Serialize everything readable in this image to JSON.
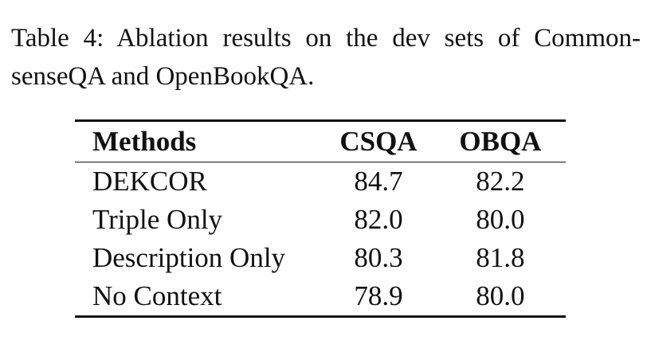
{
  "caption": {
    "line1": "Table 4:  Ablation results on the dev sets of Common-",
    "line2": "senseQA and OpenBookQA."
  },
  "table": {
    "headers": [
      "Methods",
      "CSQA",
      "OBQA"
    ],
    "rows": [
      {
        "method": "DEKCOR",
        "csqa": "84.7",
        "obqa": "82.2"
      },
      {
        "method": "Triple Only",
        "csqa": "82.0",
        "obqa": "80.0"
      },
      {
        "method": "Description Only",
        "csqa": "80.3",
        "obqa": "81.8"
      },
      {
        "method": "No Context",
        "csqa": "78.9",
        "obqa": "80.0"
      }
    ]
  }
}
